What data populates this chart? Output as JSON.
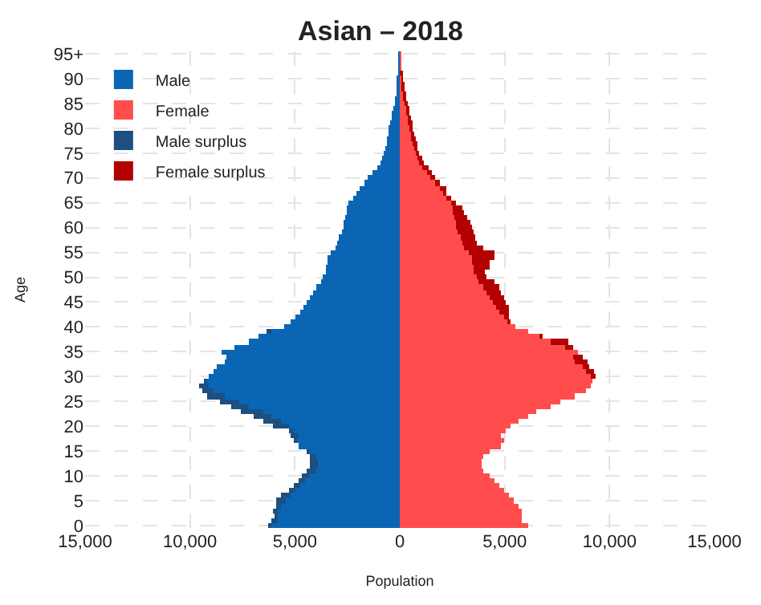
{
  "chart_data": {
    "type": "bar",
    "orientation": "horizontal",
    "stacked": true,
    "title": "Asian – 2018",
    "xlabel": "Population",
    "ylabel": "Age",
    "legend": "top left",
    "grid": true,
    "categories": [
      "95+",
      null,
      null,
      null,
      null,
      "90",
      null,
      null,
      null,
      null,
      "85",
      null,
      null,
      null,
      null,
      "80",
      null,
      null,
      null,
      null,
      "75",
      null,
      null,
      null,
      null,
      "70",
      null,
      null,
      null,
      null,
      "65",
      null,
      null,
      null,
      null,
      "60",
      null,
      null,
      null,
      null,
      "55",
      null,
      null,
      null,
      null,
      "50",
      null,
      null,
      null,
      null,
      "45",
      null,
      null,
      null,
      null,
      "40",
      null,
      null,
      null,
      null,
      "35",
      null,
      null,
      null,
      null,
      "30",
      null,
      null,
      null,
      null,
      "25",
      null,
      null,
      null,
      null,
      "20",
      null,
      null,
      null,
      null,
      "15",
      null,
      null,
      null,
      null,
      "10",
      null,
      null,
      null,
      null,
      "5",
      null,
      null,
      null,
      null,
      "0"
    ],
    "xlim": [
      -15000,
      15000
    ],
    "xticks": [
      {
        "value": -15000,
        "label": "15,000"
      },
      {
        "value": -10000,
        "label": "10,000"
      },
      {
        "value": -5000,
        "label": "5,000"
      },
      0,
      {
        "value": 5000,
        "label": "5,000"
      },
      {
        "value": 10000,
        "label": "10,000"
      },
      {
        "value": 15000,
        "label": "15,000"
      }
    ],
    "series": [
      {
        "name": "Male",
        "color": "#0b65b5",
        "values": [
          -50,
          -50,
          -50,
          -50,
          -70,
          -90,
          -120,
          -140,
          -190,
          -210,
          -260,
          -310,
          -350,
          -400,
          -450,
          -500,
          -540,
          -590,
          -640,
          -710,
          -780,
          -830,
          -940,
          -1060,
          -1300,
          -1530,
          -1720,
          -1890,
          -2050,
          -2240,
          -2430,
          -2520,
          -2520,
          -2590,
          -2710,
          -2710,
          -2780,
          -2900,
          -2950,
          -3070,
          -3300,
          -3420,
          -3420,
          -3540,
          -3540,
          -3660,
          -3770,
          -4010,
          -4130,
          -4320,
          -4410,
          -4600,
          -4720,
          -4950,
          -5190,
          -5540,
          -6130,
          -6720,
          -7190,
          -7900,
          -8490,
          -8250,
          -8370,
          -8730,
          -8840,
          -9080,
          -9200,
          -9080,
          -8840,
          -8370,
          -7670,
          -7190,
          -6490,
          -6130,
          -5660,
          -5310,
          -5070,
          -4830,
          -4950,
          -4830,
          -4250,
          -4010,
          -3890,
          -3890,
          -4010,
          -4300,
          -4480,
          -4720,
          -4950,
          -5190,
          -5420,
          -5660,
          -5780,
          -5780,
          -5780,
          -6130
        ]
      },
      {
        "name": "Female",
        "color": "#ff4d4d",
        "values": [
          50,
          50,
          50,
          50,
          70,
          90,
          120,
          140,
          190,
          210,
          260,
          310,
          350,
          400,
          450,
          500,
          540,
          590,
          640,
          710,
          780,
          830,
          940,
          1060,
          1300,
          1530,
          1720,
          1890,
          2050,
          2240,
          2430,
          2520,
          2520,
          2590,
          2710,
          2710,
          2780,
          2900,
          2950,
          3070,
          3300,
          3420,
          3420,
          3540,
          3540,
          3660,
          3770,
          4010,
          4130,
          4320,
          4410,
          4600,
          4720,
          4950,
          5190,
          5540,
          6130,
          6720,
          7190,
          7900,
          8490,
          8250,
          8370,
          8730,
          8840,
          9080,
          9200,
          9080,
          8840,
          8370,
          7670,
          7190,
          6490,
          6130,
          5660,
          5310,
          5070,
          4830,
          4950,
          4830,
          4250,
          4010,
          3890,
          3890,
          4010,
          4300,
          4480,
          4720,
          4950,
          5190,
          5420,
          5660,
          5780,
          5780,
          5780,
          6130
        ]
      },
      {
        "name": "Male surplus",
        "color": "#1d4f80",
        "values": [
          0,
          0,
          0,
          0,
          0,
          0,
          0,
          0,
          0,
          0,
          0,
          0,
          0,
          0,
          0,
          0,
          0,
          0,
          0,
          0,
          0,
          0,
          0,
          0,
          0,
          0,
          0,
          0,
          0,
          0,
          0,
          0,
          0,
          0,
          0,
          0,
          0,
          0,
          0,
          0,
          0,
          0,
          0,
          0,
          0,
          0,
          0,
          0,
          0,
          0,
          0,
          0,
          0,
          0,
          0,
          0,
          -240,
          0,
          0,
          0,
          0,
          0,
          0,
          0,
          0,
          0,
          -120,
          -520,
          -590,
          -830,
          -940,
          -830,
          -1060,
          -830,
          -830,
          -750,
          -230,
          -360,
          -120,
          0,
          -160,
          -280,
          -360,
          -400,
          -400,
          -350,
          -350,
          -350,
          -350,
          -470,
          -480,
          -240,
          -280,
          -220,
          -350,
          -170
        ]
      },
      {
        "name": "Female surplus",
        "color": "#b30000",
        "values": [
          0,
          0,
          0,
          0,
          50,
          50,
          50,
          70,
          70,
          100,
          90,
          90,
          120,
          140,
          140,
          140,
          140,
          140,
          190,
          160,
          160,
          230,
          240,
          280,
          230,
          120,
          170,
          300,
          190,
          240,
          280,
          430,
          550,
          590,
          660,
          710,
          760,
          710,
          710,
          940,
          1180,
          1060,
          880,
          710,
          540,
          470,
          710,
          710,
          700,
          630,
          660,
          590,
          470,
          240,
          120,
          0,
          0,
          120,
          830,
          350,
          0,
          480,
          590,
          300,
          430,
          240,
          0,
          0,
          0,
          0,
          0,
          0,
          0,
          0,
          0,
          0,
          0,
          0,
          0,
          0,
          0,
          0,
          0,
          0,
          0,
          0,
          0,
          0,
          0,
          0,
          0,
          0,
          0,
          0,
          0,
          0
        ]
      }
    ]
  }
}
